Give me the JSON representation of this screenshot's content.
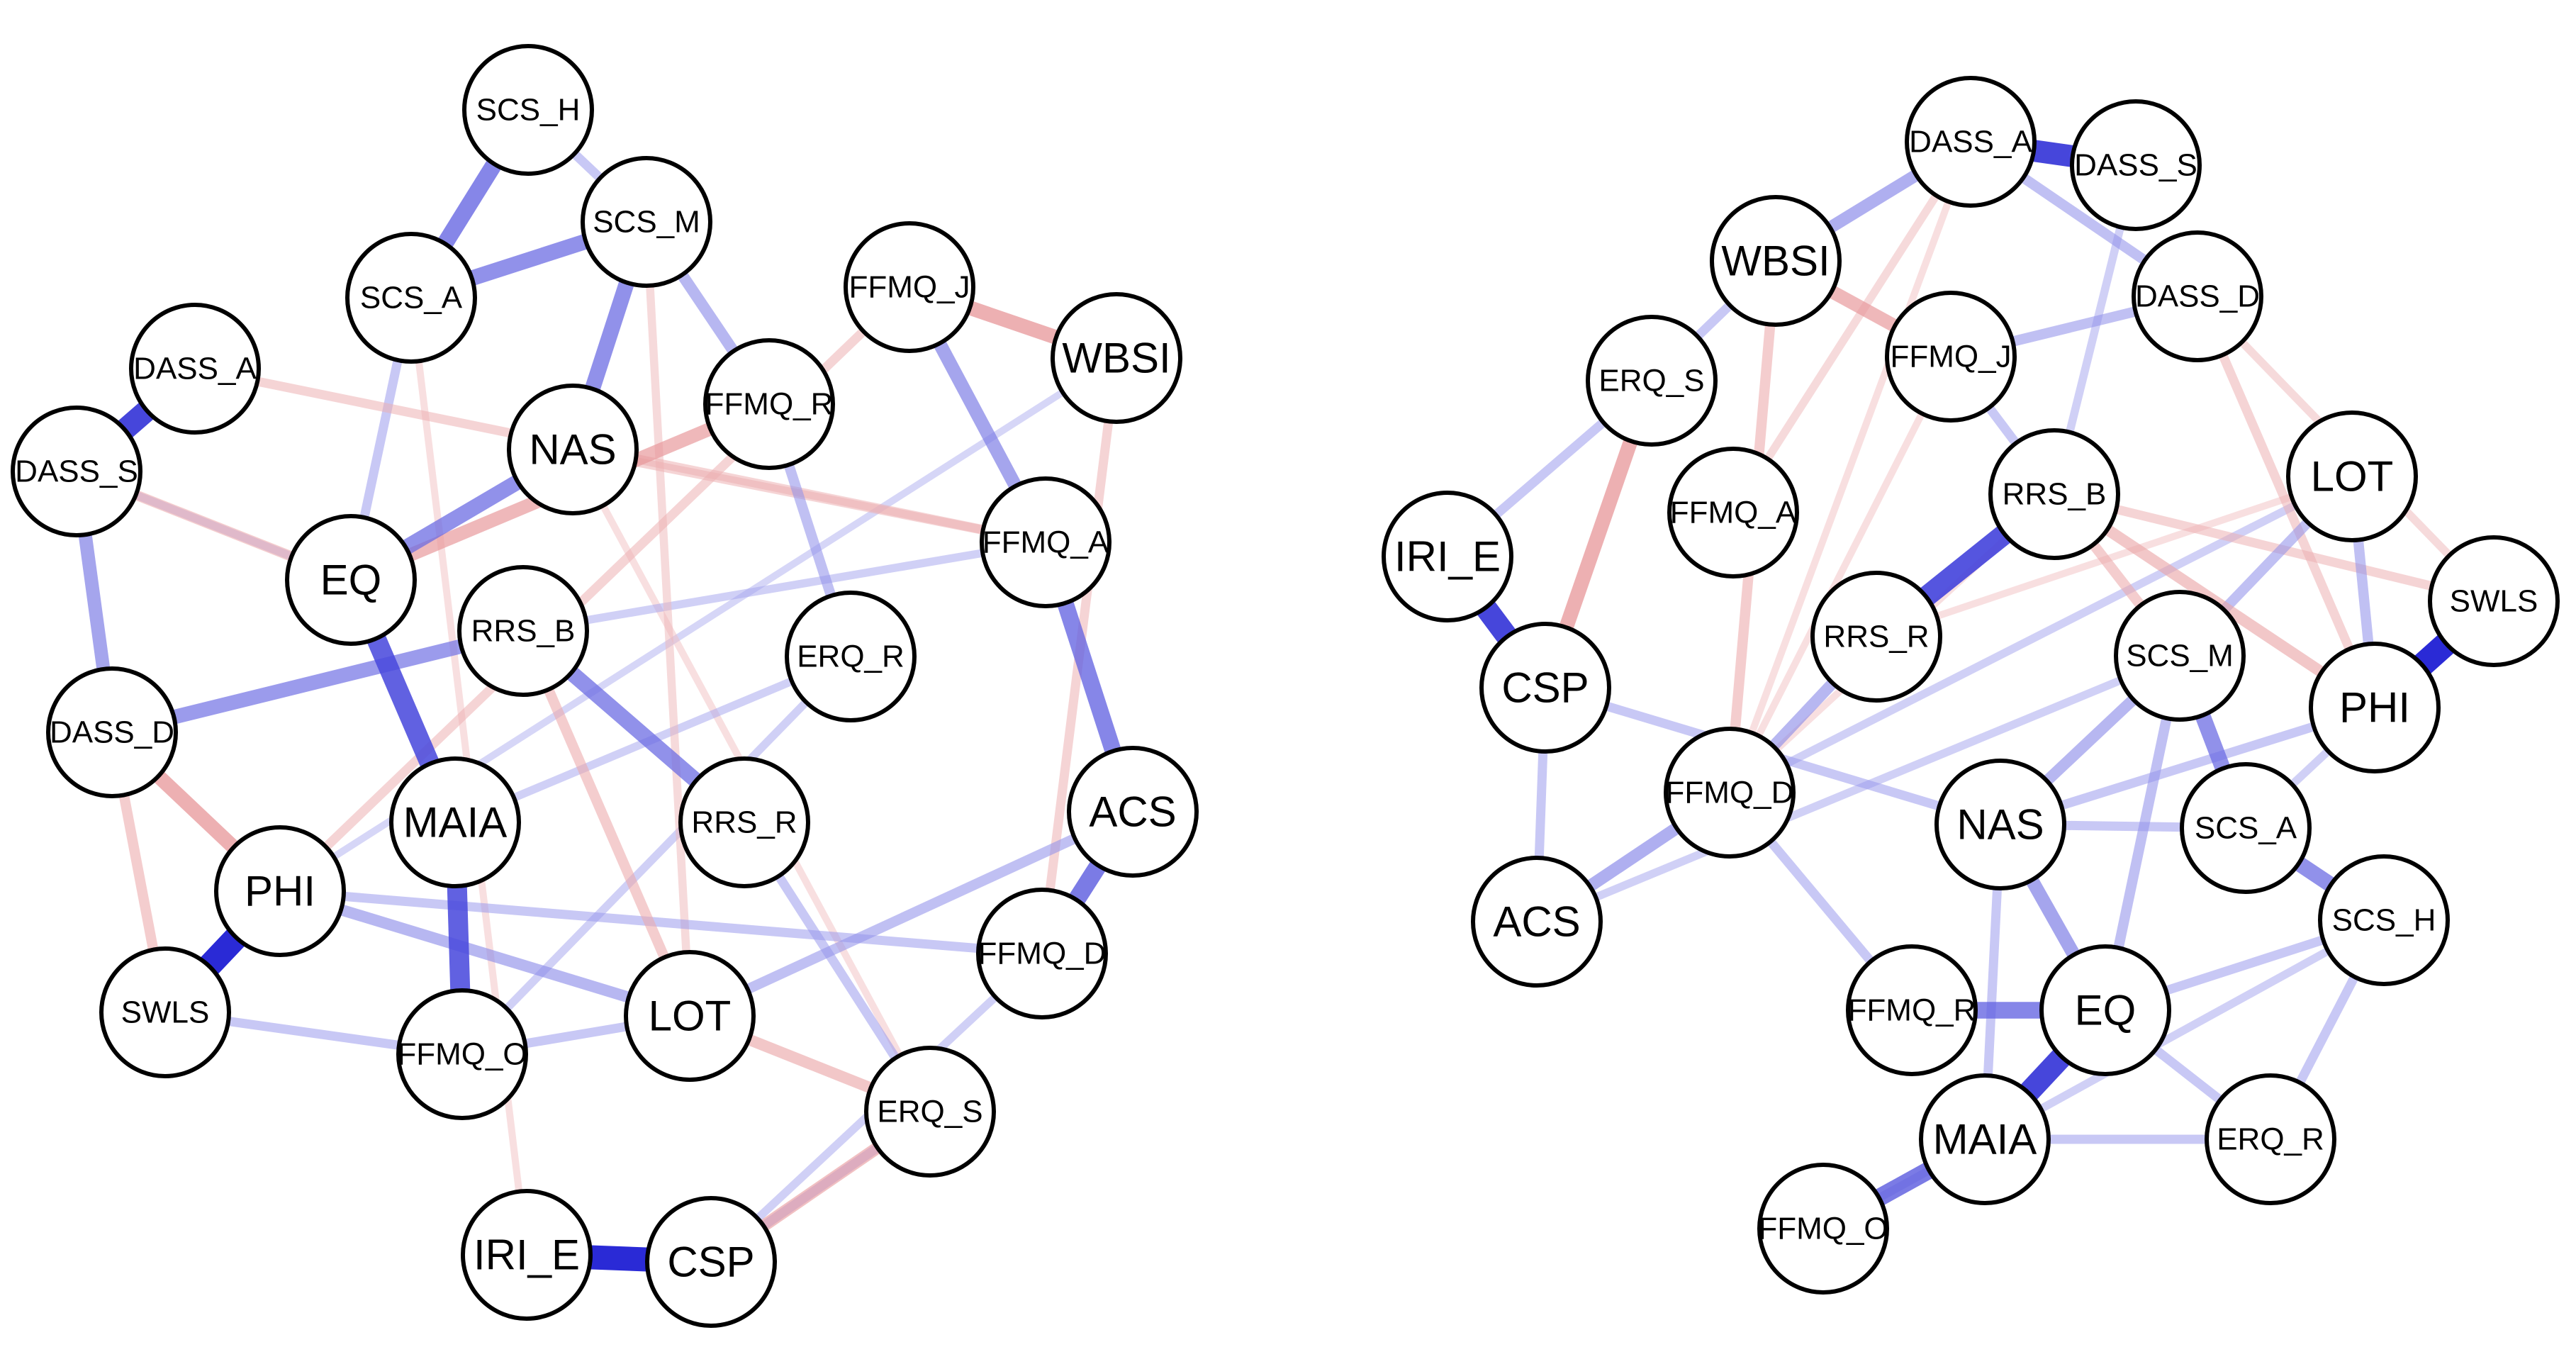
{
  "colors": {
    "positive_edge": "#2a2ad6",
    "negative_edge": "#d9575c",
    "node_fill": "#ffffff",
    "node_border": "#000000"
  },
  "networks": [
    {
      "name": "network-left",
      "nodes": [
        {
          "id": "SCS_H"
        },
        {
          "id": "SCS_M"
        },
        {
          "id": "SCS_A"
        },
        {
          "id": "FFMQ_J"
        },
        {
          "id": "WBSI"
        },
        {
          "id": "DASS_A"
        },
        {
          "id": "NAS"
        },
        {
          "id": "FFMQ_R"
        },
        {
          "id": "DASS_S"
        },
        {
          "id": "FFMQ_A"
        },
        {
          "id": "EQ"
        },
        {
          "id": "RRS_B"
        },
        {
          "id": "ERQ_R"
        },
        {
          "id": "DASS_D"
        },
        {
          "id": "MAIA"
        },
        {
          "id": "RRS_R"
        },
        {
          "id": "ACS"
        },
        {
          "id": "PHI"
        },
        {
          "id": "FFMQ_D"
        },
        {
          "id": "SWLS"
        },
        {
          "id": "FFMQ_O"
        },
        {
          "id": "LOT"
        },
        {
          "id": "ERQ_S"
        },
        {
          "id": "IRI_E"
        },
        {
          "id": "CSP"
        }
      ],
      "edges": [
        {
          "a": "IRI_E",
          "b": "CSP",
          "sign": "pos",
          "w": 1.0
        },
        {
          "a": "PHI",
          "b": "SWLS",
          "sign": "pos",
          "w": 1.0
        },
        {
          "a": "DASS_A",
          "b": "DASS_S",
          "sign": "pos",
          "w": 0.9
        },
        {
          "a": "EQ",
          "b": "MAIA",
          "sign": "pos",
          "w": 0.8
        },
        {
          "a": "MAIA",
          "b": "FFMQ_O",
          "sign": "pos",
          "w": 0.8
        },
        {
          "a": "ACS",
          "b": "FFMQ_D",
          "sign": "pos",
          "w": 0.7
        },
        {
          "a": "FFMQ_A",
          "b": "ACS",
          "sign": "pos",
          "w": 0.65
        },
        {
          "a": "SCS_H",
          "b": "SCS_A",
          "sign": "pos",
          "w": 0.65
        },
        {
          "a": "SCS_M",
          "b": "SCS_A",
          "sign": "pos",
          "w": 0.6
        },
        {
          "a": "SCS_M",
          "b": "NAS",
          "sign": "pos",
          "w": 0.6
        },
        {
          "a": "NAS",
          "b": "EQ",
          "sign": "pos",
          "w": 0.6
        },
        {
          "a": "RRS_B",
          "b": "RRS_R",
          "sign": "pos",
          "w": 0.6
        },
        {
          "a": "DASS_D",
          "b": "RRS_B",
          "sign": "pos",
          "w": 0.55
        },
        {
          "a": "DASS_S",
          "b": "DASS_D",
          "sign": "pos",
          "w": 0.5
        },
        {
          "a": "FFMQ_J",
          "b": "FFMQ_A",
          "sign": "pos",
          "w": 0.5
        },
        {
          "a": "SCS_M",
          "b": "FFMQ_R",
          "sign": "pos",
          "w": 0.4
        },
        {
          "a": "SCS_H",
          "b": "SCS_M",
          "sign": "pos",
          "w": 0.3
        },
        {
          "a": "FFMQ_R",
          "b": "ERQ_R",
          "sign": "pos",
          "w": 0.35
        },
        {
          "a": "PHI",
          "b": "LOT",
          "sign": "pos",
          "w": 0.4
        },
        {
          "a": "LOT",
          "b": "ACS",
          "sign": "pos",
          "w": 0.35
        },
        {
          "a": "CSP",
          "b": "ERQ_S",
          "sign": "pos",
          "w": 0.3
        },
        {
          "a": "SWLS",
          "b": "FFMQ_O",
          "sign": "pos",
          "w": 0.3
        },
        {
          "a": "FFMQ_O",
          "b": "LOT",
          "sign": "pos",
          "w": 0.3
        },
        {
          "a": "PHI",
          "b": "FFMQ_D",
          "sign": "pos",
          "w": 0.3
        },
        {
          "a": "DASS_S",
          "b": "EQ",
          "sign": "pos",
          "w": 0.25
        },
        {
          "a": "MAIA",
          "b": "ERQ_R",
          "sign": "pos",
          "w": 0.25
        },
        {
          "a": "RRS_B",
          "b": "FFMQ_A",
          "sign": "pos",
          "w": 0.25
        },
        {
          "a": "SCS_A",
          "b": "EQ",
          "sign": "pos",
          "w": 0.3
        },
        {
          "a": "ERQ_R",
          "b": "FFMQ_O",
          "sign": "pos",
          "w": 0.25
        },
        {
          "a": "RRS_R",
          "b": "ERQ_S",
          "sign": "pos",
          "w": 0.3
        },
        {
          "a": "CSP",
          "b": "FFMQ_D",
          "sign": "pos",
          "w": 0.25
        },
        {
          "a": "WBSI",
          "b": "PHI",
          "sign": "pos",
          "w": 0.2
        },
        {
          "a": "DASS_D",
          "b": "PHI",
          "sign": "neg",
          "w": 0.55
        },
        {
          "a": "FFMQ_J",
          "b": "WBSI",
          "sign": "neg",
          "w": 0.55
        },
        {
          "a": "EQ",
          "b": "FFMQ_R",
          "sign": "neg",
          "w": 0.5
        },
        {
          "a": "ERQ_S",
          "b": "CSP",
          "sign": "neg",
          "w": 0.45
        },
        {
          "a": "LOT",
          "b": "ERQ_S",
          "sign": "neg",
          "w": 0.4
        },
        {
          "a": "DASS_S",
          "b": "EQ",
          "sign": "neg",
          "w": 0.35
        },
        {
          "a": "DASS_A",
          "b": "FFMQ_A",
          "sign": "neg",
          "w": 0.3
        },
        {
          "a": "SWLS",
          "b": "DASS_D",
          "sign": "neg",
          "w": 0.35
        },
        {
          "a": "RRS_B",
          "b": "LOT",
          "sign": "neg",
          "w": 0.35
        },
        {
          "a": "WBSI",
          "b": "FFMQ_D",
          "sign": "neg",
          "w": 0.3
        },
        {
          "a": "FFMQ_J",
          "b": "PHI",
          "sign": "neg",
          "w": 0.3
        },
        {
          "a": "NAS",
          "b": "FFMQ_A",
          "sign": "neg",
          "w": 0.3
        },
        {
          "a": "SCS_M",
          "b": "LOT",
          "sign": "neg",
          "w": 0.25
        },
        {
          "a": "IRI_E",
          "b": "SCS_A",
          "sign": "neg",
          "w": 0.2
        },
        {
          "a": "NAS",
          "b": "ERQ_S",
          "sign": "neg",
          "w": 0.2
        }
      ]
    },
    {
      "name": "network-right",
      "nodes": [
        {
          "id": "DASS_A"
        },
        {
          "id": "DASS_S"
        },
        {
          "id": "WBSI"
        },
        {
          "id": "DASS_D"
        },
        {
          "id": "FFMQ_J"
        },
        {
          "id": "ERQ_S"
        },
        {
          "id": "LOT"
        },
        {
          "id": "FFMQ_A"
        },
        {
          "id": "RRS_B"
        },
        {
          "id": "IRI_E"
        },
        {
          "id": "SWLS"
        },
        {
          "id": "RRS_R"
        },
        {
          "id": "SCS_M"
        },
        {
          "id": "CSP"
        },
        {
          "id": "PHI"
        },
        {
          "id": "FFMQ_D"
        },
        {
          "id": "NAS"
        },
        {
          "id": "SCS_A"
        },
        {
          "id": "ACS"
        },
        {
          "id": "SCS_H"
        },
        {
          "id": "FFMQ_R"
        },
        {
          "id": "EQ"
        },
        {
          "id": "MAIA"
        },
        {
          "id": "ERQ_R"
        },
        {
          "id": "FFMQ_O"
        }
      ],
      "edges": [
        {
          "a": "DASS_A",
          "b": "DASS_S",
          "sign": "pos",
          "w": 0.9
        },
        {
          "a": "IRI_E",
          "b": "CSP",
          "sign": "pos",
          "w": 0.9
        },
        {
          "a": "PHI",
          "b": "SWLS",
          "sign": "pos",
          "w": 1.0
        },
        {
          "a": "EQ",
          "b": "MAIA",
          "sign": "pos",
          "w": 0.9
        },
        {
          "a": "RRS_B",
          "b": "RRS_R",
          "sign": "pos",
          "w": 0.85
        },
        {
          "a": "MAIA",
          "b": "FFMQ_O",
          "sign": "pos",
          "w": 0.7
        },
        {
          "a": "FFMQ_R",
          "b": "EQ",
          "sign": "pos",
          "w": 0.65
        },
        {
          "a": "SCS_M",
          "b": "SCS_A",
          "sign": "pos",
          "w": 0.6
        },
        {
          "a": "SCS_A",
          "b": "SCS_H",
          "sign": "pos",
          "w": 0.6
        },
        {
          "a": "NAS",
          "b": "EQ",
          "sign": "pos",
          "w": 0.5
        },
        {
          "a": "WBSI",
          "b": "DASS_A",
          "sign": "pos",
          "w": 0.45
        },
        {
          "a": "ACS",
          "b": "FFMQ_D",
          "sign": "pos",
          "w": 0.45
        },
        {
          "a": "FFMQ_D",
          "b": "RRS_R",
          "sign": "pos",
          "w": 0.4
        },
        {
          "a": "NAS",
          "b": "SCS_M",
          "sign": "pos",
          "w": 0.4
        },
        {
          "a": "DASS_A",
          "b": "DASS_D",
          "sign": "pos",
          "w": 0.35
        },
        {
          "a": "FFMQ_J",
          "b": "DASS_D",
          "sign": "pos",
          "w": 0.35
        },
        {
          "a": "SCS_M",
          "b": "LOT",
          "sign": "pos",
          "w": 0.35
        },
        {
          "a": "LOT",
          "b": "PHI",
          "sign": "pos",
          "w": 0.35
        },
        {
          "a": "ERQ_S",
          "b": "WBSI",
          "sign": "pos",
          "w": 0.3
        },
        {
          "a": "ERQ_S",
          "b": "IRI_E",
          "sign": "pos",
          "w": 0.3
        },
        {
          "a": "CSP",
          "b": "ACS",
          "sign": "pos",
          "w": 0.3
        },
        {
          "a": "CSP",
          "b": "NAS",
          "sign": "pos",
          "w": 0.3
        },
        {
          "a": "NAS",
          "b": "SCS_A",
          "sign": "pos",
          "w": 0.3
        },
        {
          "a": "NAS",
          "b": "PHI",
          "sign": "pos",
          "w": 0.3
        },
        {
          "a": "EQ",
          "b": "SCS_H",
          "sign": "pos",
          "w": 0.3
        },
        {
          "a": "EQ",
          "b": "SCS_M",
          "sign": "pos",
          "w": 0.35
        },
        {
          "a": "EQ",
          "b": "ERQ_R",
          "sign": "pos",
          "w": 0.3
        },
        {
          "a": "MAIA",
          "b": "ERQ_R",
          "sign": "pos",
          "w": 0.3
        },
        {
          "a": "FFMQ_O",
          "b": "SCS_H",
          "sign": "pos",
          "w": 0.25
        },
        {
          "a": "ERQ_R",
          "b": "SCS_H",
          "sign": "pos",
          "w": 0.3
        },
        {
          "a": "FFMQ_R",
          "b": "FFMQ_D",
          "sign": "pos",
          "w": 0.3
        },
        {
          "a": "FFMQ_J",
          "b": "RRS_B",
          "sign": "pos",
          "w": 0.3
        },
        {
          "a": "RRS_B",
          "b": "DASS_S",
          "sign": "pos",
          "w": 0.25
        },
        {
          "a": "FFMQ_D",
          "b": "LOT",
          "sign": "pos",
          "w": 0.25
        },
        {
          "a": "ACS",
          "b": "SCS_M",
          "sign": "pos",
          "w": 0.25
        },
        {
          "a": "SCS_A",
          "b": "PHI",
          "sign": "pos",
          "w": 0.25
        },
        {
          "a": "MAIA",
          "b": "NAS",
          "sign": "pos",
          "w": 0.3
        },
        {
          "a": "RRS_B",
          "b": "FFMQ_D",
          "sign": "neg",
          "w": 0.2
        },
        {
          "a": "ERQ_S",
          "b": "CSP",
          "sign": "neg",
          "w": 0.55
        },
        {
          "a": "WBSI",
          "b": "FFMQ_J",
          "sign": "neg",
          "w": 0.5
        },
        {
          "a": "WBSI",
          "b": "FFMQ_D",
          "sign": "neg",
          "w": 0.35
        },
        {
          "a": "RRS_B",
          "b": "PHI",
          "sign": "neg",
          "w": 0.4
        },
        {
          "a": "RRS_B",
          "b": "SCS_M",
          "sign": "neg",
          "w": 0.35
        },
        {
          "a": "DASS_D",
          "b": "PHI",
          "sign": "neg",
          "w": 0.3
        },
        {
          "a": "RRS_B",
          "b": "SWLS",
          "sign": "neg",
          "w": 0.3
        },
        {
          "a": "FFMQ_A",
          "b": "DASS_A",
          "sign": "neg",
          "w": 0.25
        },
        {
          "a": "LOT",
          "b": "RRS_R",
          "sign": "neg",
          "w": 0.2
        },
        {
          "a": "DASS_D",
          "b": "SWLS",
          "sign": "neg",
          "w": 0.25
        },
        {
          "a": "FFMQ_J",
          "b": "FFMQ_D",
          "sign": "neg",
          "w": 0.2
        },
        {
          "a": "DASS_A",
          "b": "FFMQ_D",
          "sign": "neg",
          "w": 0.2
        }
      ]
    }
  ]
}
